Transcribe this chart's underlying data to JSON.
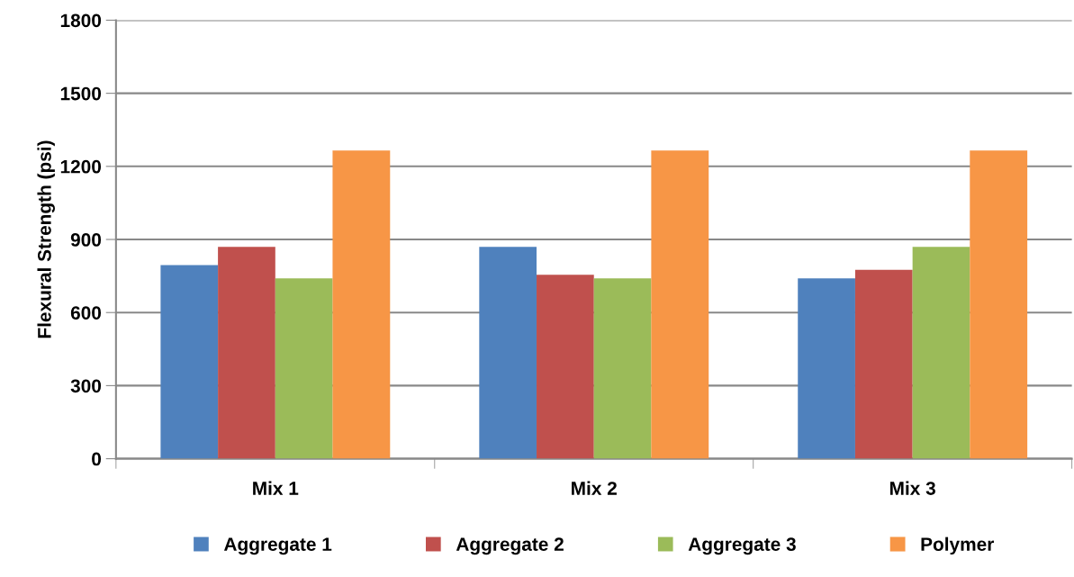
{
  "chart_data": {
    "type": "bar",
    "ylabel": "Flexural Strength (psi)",
    "categories": [
      "Mix 1",
      "Mix 2",
      "Mix 3"
    ],
    "series": [
      {
        "name": "Aggregate 1",
        "color": "#4f81bd",
        "values": [
          795,
          870,
          740
        ]
      },
      {
        "name": "Aggregate 2",
        "color": "#c0504d",
        "values": [
          870,
          755,
          775
        ]
      },
      {
        "name": "Aggregate 3",
        "color": "#9bbb59",
        "values": [
          740,
          740,
          870
        ]
      },
      {
        "name": "Polymer",
        "color": "#f79646",
        "values": [
          1265,
          1265,
          1265
        ]
      }
    ],
    "ylim": [
      0,
      1800
    ],
    "yticks": [
      0,
      300,
      600,
      900,
      1200,
      1500,
      1800
    ],
    "grid": "y",
    "legend": "bottom"
  }
}
